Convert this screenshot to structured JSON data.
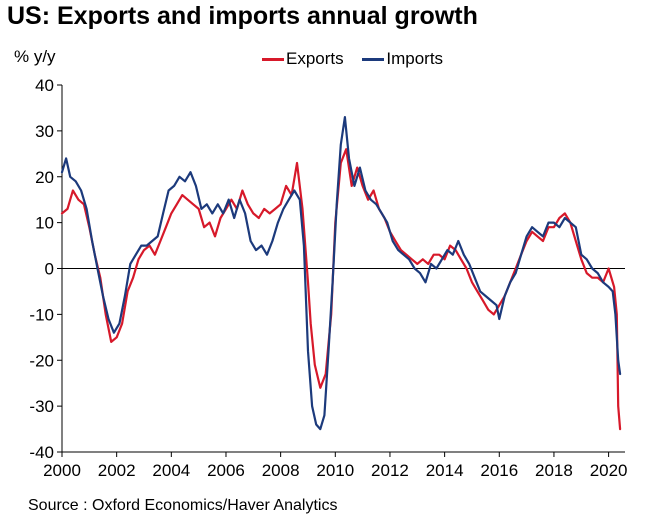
{
  "title": "US: Exports and imports annual growth",
  "source": "Source : Oxford Economics/Haver Analytics",
  "chart_data": {
    "type": "line",
    "title": "US: Exports and imports annual growth",
    "ylabel": "% y/y",
    "xlabel": "",
    "xlim": [
      2000,
      2020.6
    ],
    "ylim": [
      -40,
      40
    ],
    "x_ticks": [
      "2000",
      "2002",
      "2004",
      "2006",
      "2008",
      "2010",
      "2012",
      "2014",
      "2016",
      "2018",
      "2020"
    ],
    "y_ticks": [
      "40",
      "30",
      "20",
      "10",
      "0",
      "-10",
      "-20",
      "-30",
      "-40"
    ],
    "grid": false,
    "legend_position": "top-center",
    "series": [
      {
        "name": "Exports",
        "color": "#d7192a",
        "points": [
          [
            2000.0,
            12
          ],
          [
            2000.2,
            13
          ],
          [
            2000.4,
            17
          ],
          [
            2000.6,
            15
          ],
          [
            2000.8,
            14
          ],
          [
            2001.0,
            9
          ],
          [
            2001.2,
            3
          ],
          [
            2001.4,
            -2
          ],
          [
            2001.6,
            -10
          ],
          [
            2001.8,
            -16
          ],
          [
            2002.0,
            -15
          ],
          [
            2002.2,
            -12
          ],
          [
            2002.4,
            -5
          ],
          [
            2002.6,
            -2
          ],
          [
            2002.8,
            2
          ],
          [
            2003.0,
            4
          ],
          [
            2003.2,
            5
          ],
          [
            2003.4,
            3
          ],
          [
            2003.6,
            6
          ],
          [
            2003.8,
            9
          ],
          [
            2004.0,
            12
          ],
          [
            2004.2,
            14
          ],
          [
            2004.4,
            16
          ],
          [
            2004.6,
            15
          ],
          [
            2004.8,
            14
          ],
          [
            2005.0,
            13
          ],
          [
            2005.2,
            9
          ],
          [
            2005.4,
            10
          ],
          [
            2005.6,
            7
          ],
          [
            2005.8,
            11
          ],
          [
            2006.0,
            13
          ],
          [
            2006.2,
            15
          ],
          [
            2006.4,
            13
          ],
          [
            2006.6,
            17
          ],
          [
            2006.8,
            14
          ],
          [
            2007.0,
            12
          ],
          [
            2007.2,
            11
          ],
          [
            2007.4,
            13
          ],
          [
            2007.6,
            12
          ],
          [
            2007.8,
            13
          ],
          [
            2008.0,
            14
          ],
          [
            2008.2,
            18
          ],
          [
            2008.4,
            16
          ],
          [
            2008.6,
            23
          ],
          [
            2008.8,
            13
          ],
          [
            2009.0,
            -3
          ],
          [
            2009.1,
            -12
          ],
          [
            2009.25,
            -21
          ],
          [
            2009.45,
            -26
          ],
          [
            2009.65,
            -23
          ],
          [
            2009.85,
            -10
          ],
          [
            2010.0,
            10
          ],
          [
            2010.2,
            23
          ],
          [
            2010.4,
            26
          ],
          [
            2010.6,
            18
          ],
          [
            2010.8,
            22
          ],
          [
            2011.0,
            18
          ],
          [
            2011.2,
            15
          ],
          [
            2011.4,
            17
          ],
          [
            2011.6,
            13
          ],
          [
            2011.8,
            11
          ],
          [
            2012.0,
            8
          ],
          [
            2012.2,
            6
          ],
          [
            2012.4,
            4
          ],
          [
            2012.6,
            3
          ],
          [
            2012.8,
            2
          ],
          [
            2013.0,
            1
          ],
          [
            2013.2,
            2
          ],
          [
            2013.4,
            1
          ],
          [
            2013.6,
            3
          ],
          [
            2013.8,
            3
          ],
          [
            2014.0,
            2
          ],
          [
            2014.2,
            5
          ],
          [
            2014.4,
            4
          ],
          [
            2014.6,
            2
          ],
          [
            2014.8,
            0
          ],
          [
            2015.0,
            -3
          ],
          [
            2015.2,
            -5
          ],
          [
            2015.4,
            -7
          ],
          [
            2015.6,
            -9
          ],
          [
            2015.8,
            -10
          ],
          [
            2016.0,
            -8
          ],
          [
            2016.2,
            -6
          ],
          [
            2016.4,
            -3
          ],
          [
            2016.6,
            0
          ],
          [
            2016.8,
            3
          ],
          [
            2017.0,
            6
          ],
          [
            2017.2,
            8
          ],
          [
            2017.4,
            7
          ],
          [
            2017.6,
            6
          ],
          [
            2017.8,
            9
          ],
          [
            2018.0,
            9
          ],
          [
            2018.2,
            11
          ],
          [
            2018.4,
            12
          ],
          [
            2018.6,
            10
          ],
          [
            2018.8,
            6
          ],
          [
            2019.0,
            2
          ],
          [
            2019.2,
            -1
          ],
          [
            2019.4,
            -2
          ],
          [
            2019.6,
            -2
          ],
          [
            2019.8,
            -3
          ],
          [
            2020.0,
            0
          ],
          [
            2020.2,
            -4
          ],
          [
            2020.3,
            -10
          ],
          [
            2020.35,
            -30
          ],
          [
            2020.42,
            -35
          ]
        ]
      },
      {
        "name": "Imports",
        "color": "#1c3a7c",
        "points": [
          [
            2000.0,
            21
          ],
          [
            2000.15,
            24
          ],
          [
            2000.3,
            20
          ],
          [
            2000.5,
            19
          ],
          [
            2000.7,
            17
          ],
          [
            2000.9,
            13
          ],
          [
            2001.1,
            6
          ],
          [
            2001.3,
            0
          ],
          [
            2001.5,
            -6
          ],
          [
            2001.7,
            -11
          ],
          [
            2001.9,
            -14
          ],
          [
            2002.1,
            -12
          ],
          [
            2002.3,
            -6
          ],
          [
            2002.5,
            1
          ],
          [
            2002.7,
            3
          ],
          [
            2002.9,
            5
          ],
          [
            2003.1,
            5
          ],
          [
            2003.3,
            6
          ],
          [
            2003.5,
            7
          ],
          [
            2003.7,
            12
          ],
          [
            2003.9,
            17
          ],
          [
            2004.1,
            18
          ],
          [
            2004.3,
            20
          ],
          [
            2004.5,
            19
          ],
          [
            2004.7,
            21
          ],
          [
            2004.9,
            18
          ],
          [
            2005.1,
            13
          ],
          [
            2005.3,
            14
          ],
          [
            2005.5,
            12
          ],
          [
            2005.7,
            14
          ],
          [
            2005.9,
            12
          ],
          [
            2006.1,
            15
          ],
          [
            2006.3,
            11
          ],
          [
            2006.5,
            15
          ],
          [
            2006.7,
            12
          ],
          [
            2006.9,
            6
          ],
          [
            2007.1,
            4
          ],
          [
            2007.3,
            5
          ],
          [
            2007.5,
            3
          ],
          [
            2007.7,
            6
          ],
          [
            2007.9,
            10
          ],
          [
            2008.1,
            13
          ],
          [
            2008.3,
            15
          ],
          [
            2008.5,
            17
          ],
          [
            2008.7,
            15
          ],
          [
            2008.85,
            5
          ],
          [
            2009.0,
            -18
          ],
          [
            2009.15,
            -30
          ],
          [
            2009.3,
            -34
          ],
          [
            2009.45,
            -35
          ],
          [
            2009.6,
            -32
          ],
          [
            2009.75,
            -18
          ],
          [
            2009.9,
            -3
          ],
          [
            2010.05,
            14
          ],
          [
            2010.2,
            27
          ],
          [
            2010.35,
            33
          ],
          [
            2010.5,
            24
          ],
          [
            2010.7,
            18
          ],
          [
            2010.9,
            22
          ],
          [
            2011.1,
            17
          ],
          [
            2011.3,
            15
          ],
          [
            2011.5,
            14
          ],
          [
            2011.7,
            12
          ],
          [
            2011.9,
            10
          ],
          [
            2012.1,
            6
          ],
          [
            2012.3,
            4
          ],
          [
            2012.5,
            3
          ],
          [
            2012.7,
            2
          ],
          [
            2012.9,
            0
          ],
          [
            2013.1,
            -1
          ],
          [
            2013.3,
            -3
          ],
          [
            2013.5,
            1
          ],
          [
            2013.7,
            0
          ],
          [
            2013.9,
            2
          ],
          [
            2014.1,
            4
          ],
          [
            2014.3,
            3
          ],
          [
            2014.5,
            6
          ],
          [
            2014.7,
            3
          ],
          [
            2014.9,
            1
          ],
          [
            2015.1,
            -2
          ],
          [
            2015.3,
            -5
          ],
          [
            2015.5,
            -6
          ],
          [
            2015.7,
            -7
          ],
          [
            2015.9,
            -8
          ],
          [
            2016.0,
            -11
          ],
          [
            2016.2,
            -6
          ],
          [
            2016.4,
            -3
          ],
          [
            2016.6,
            -1
          ],
          [
            2016.8,
            3
          ],
          [
            2017.0,
            7
          ],
          [
            2017.2,
            9
          ],
          [
            2017.4,
            8
          ],
          [
            2017.6,
            7
          ],
          [
            2017.8,
            10
          ],
          [
            2018.0,
            10
          ],
          [
            2018.2,
            9
          ],
          [
            2018.4,
            11
          ],
          [
            2018.6,
            10
          ],
          [
            2018.8,
            9
          ],
          [
            2019.0,
            3
          ],
          [
            2019.2,
            2
          ],
          [
            2019.4,
            0
          ],
          [
            2019.6,
            -1
          ],
          [
            2019.8,
            -3
          ],
          [
            2020.0,
            -4
          ],
          [
            2020.15,
            -5
          ],
          [
            2020.25,
            -10
          ],
          [
            2020.35,
            -20
          ],
          [
            2020.42,
            -23
          ]
        ]
      }
    ]
  }
}
